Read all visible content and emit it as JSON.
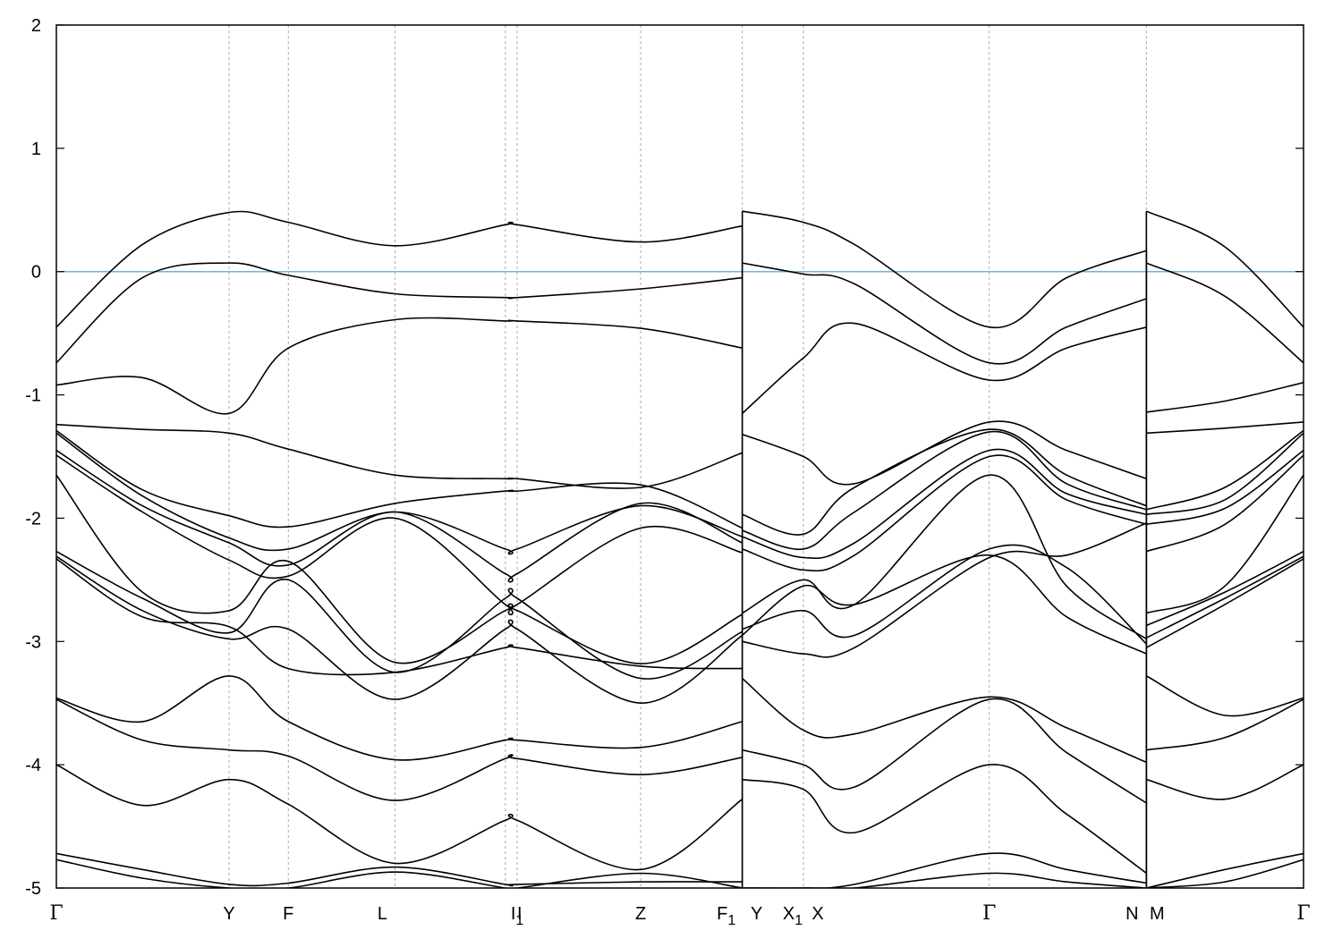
{
  "chart_data": {
    "type": "line",
    "ylim": [
      -5,
      2
    ],
    "yticks": [
      -5,
      -4,
      -3,
      -2,
      -1,
      0,
      1,
      2
    ],
    "grid": "vertical dashed lines at high-symmetry points",
    "fermi_level": 0,
    "colors": {
      "bands": "#000000",
      "fermi_line": "#6fb7d0",
      "grid": "#aaaaaa"
    },
    "kpoints": [
      {
        "label": "Γ",
        "x": 0.0
      },
      {
        "label": "Y",
        "x": 1.385
      },
      {
        "label": "F",
        "x": 1.86
      },
      {
        "label": "L",
        "x": 2.715
      },
      {
        "label": "I",
        "x": 3.6
      },
      {
        "label": "I",
        "sub": "1",
        "x": 3.695
      },
      {
        "label": "Z",
        "x": 4.685
      },
      {
        "label": "F",
        "sub": "1",
        "x": 5.5
      },
      {
        "label": "Y",
        "x": 5.5
      },
      {
        "label": "X",
        "sub": "1",
        "x": 5.99
      },
      {
        "label": "X",
        "x": 5.99
      },
      {
        "label": "Γ",
        "x": 7.48
      },
      {
        "label": "N",
        "x": 8.74
      },
      {
        "label": "M",
        "x": 8.74
      },
      {
        "label": "Γ",
        "x": 10.0
      }
    ],
    "xlim": [
      0,
      10
    ],
    "segments": [
      {
        "name": "Γ-Y-F-L-I-I1-Z-F1",
        "x": [
          0,
          0.69,
          1.385,
          1.86,
          2.715,
          3.6,
          3.695,
          4.685,
          5.5
        ],
        "bands": [
          [
            -0.45,
            0.22,
            0.48,
            0.4,
            0.21,
            0.38,
            0.38,
            0.24,
            0.37
          ],
          [
            -0.74,
            -0.05,
            0.07,
            -0.03,
            -0.18,
            -0.21,
            -0.21,
            -0.14,
            -0.05
          ],
          [
            -0.92,
            -0.86,
            -1.15,
            -0.62,
            -0.39,
            -0.4,
            -0.4,
            -0.46,
            -0.62
          ],
          [
            -1.24,
            -1.28,
            -1.31,
            -1.44,
            -1.65,
            -1.68,
            -1.68,
            -1.75,
            -1.47
          ],
          [
            -1.29,
            -1.77,
            -1.98,
            -2.07,
            -1.88,
            -1.78,
            -1.78,
            -1.73,
            -2.08
          ],
          [
            -1.31,
            -1.82,
            -2.16,
            -2.25,
            -1.95,
            -2.25,
            -2.25,
            -1.9,
            -2.15
          ],
          [
            -1.45,
            -1.9,
            -2.2,
            -2.38,
            -1.95,
            -2.45,
            -2.45,
            -1.88,
            -2.2
          ],
          [
            -1.49,
            -1.95,
            -2.34,
            -2.47,
            -2.0,
            -2.7,
            -2.7,
            -2.08,
            -2.28
          ],
          [
            -1.65,
            -2.6,
            -2.75,
            -2.35,
            -3.17,
            -2.75,
            -2.75,
            -3.18,
            -2.78
          ],
          [
            -2.27,
            -2.65,
            -2.93,
            -2.5,
            -3.25,
            -2.65,
            -2.65,
            -3.3,
            -2.92
          ],
          [
            -2.31,
            -2.75,
            -2.98,
            -2.9,
            -3.47,
            -2.9,
            -2.9,
            -3.5,
            -2.95
          ],
          [
            -2.33,
            -2.8,
            -2.88,
            -3.22,
            -3.25,
            -3.05,
            -3.05,
            -3.2,
            -3.22
          ],
          [
            -3.46,
            -3.65,
            -3.28,
            -3.65,
            -3.96,
            -3.8,
            -3.8,
            -3.86,
            -3.65
          ],
          [
            -3.47,
            -3.8,
            -3.88,
            -3.93,
            -4.29,
            -3.95,
            -3.95,
            -4.08,
            -3.94
          ],
          [
            -4.0,
            -4.33,
            -4.12,
            -4.32,
            -4.8,
            -4.45,
            -4.45,
            -4.85,
            -4.28
          ],
          [
            -4.72,
            -4.85,
            -4.97,
            -4.96,
            -4.83,
            -4.97,
            -4.97,
            -4.95,
            -4.95
          ],
          [
            -4.77,
            -4.92,
            -5.0,
            -5.0,
            -4.87,
            -5.0,
            -5.0,
            -4.88,
            -5.0
          ]
        ]
      },
      {
        "name": "Y-X1-X-Γ-N",
        "x": [
          5.5,
          5.99,
          6.4,
          7.48,
          8.1,
          8.74
        ],
        "bands": [
          [
            0.49,
            0.4,
            0.22,
            -0.45,
            -0.05,
            0.17
          ],
          [
            0.07,
            -0.02,
            -0.1,
            -0.74,
            -0.45,
            -0.22
          ],
          [
            -1.15,
            -0.7,
            -0.42,
            -0.88,
            -0.62,
            -0.45
          ],
          [
            -1.32,
            -1.5,
            -1.72,
            -1.22,
            -1.45,
            -1.68
          ],
          [
            -1.97,
            -2.13,
            -1.75,
            -1.28,
            -1.65,
            -1.9
          ],
          [
            -2.1,
            -2.25,
            -1.95,
            -1.3,
            -1.72,
            -1.93
          ],
          [
            -2.15,
            -2.32,
            -2.2,
            -1.45,
            -1.8,
            -1.97
          ],
          [
            -2.25,
            -2.42,
            -2.3,
            -1.5,
            -1.85,
            -2.05
          ],
          [
            -2.77,
            -2.5,
            -2.7,
            -1.65,
            -2.55,
            -2.98
          ],
          [
            -2.9,
            -2.75,
            -2.95,
            -2.25,
            -2.4,
            -3.02
          ],
          [
            -2.95,
            -2.55,
            -2.7,
            -2.3,
            -2.8,
            -3.1
          ],
          [
            -3.0,
            -3.1,
            -3.05,
            -2.32,
            -2.3,
            -2.04
          ],
          [
            -3.3,
            -3.72,
            -3.75,
            -3.45,
            -3.7,
            -3.98
          ],
          [
            -3.88,
            -4.0,
            -4.18,
            -3.47,
            -3.9,
            -4.31
          ],
          [
            -4.12,
            -4.2,
            -4.55,
            -4.0,
            -4.4,
            -4.88
          ],
          [
            -5.0,
            -5.0,
            -4.97,
            -4.72,
            -4.85,
            -4.96
          ],
          [
            -5.0,
            -5.0,
            -5.0,
            -4.88,
            -4.95,
            -5.0
          ]
        ]
      },
      {
        "name": "M-Γ",
        "x": [
          8.74,
          9.37,
          10.0
        ],
        "bands": [
          [
            0.49,
            0.2,
            -0.45
          ],
          [
            0.07,
            -0.2,
            -0.74
          ],
          [
            -1.14,
            -1.05,
            -0.9
          ],
          [
            -1.31,
            -1.27,
            -1.22
          ],
          [
            -1.93,
            -1.75,
            -1.29
          ],
          [
            -1.97,
            -1.85,
            -1.31
          ],
          [
            -2.05,
            -1.92,
            -1.45
          ],
          [
            -2.27,
            -2.05,
            -1.49
          ],
          [
            -2.77,
            -2.55,
            -1.65
          ],
          [
            -2.87,
            -2.6,
            -2.27
          ],
          [
            -2.97,
            -2.65,
            -2.31
          ],
          [
            -3.05,
            -2.7,
            -2.33
          ],
          [
            -3.28,
            -3.6,
            -3.46
          ],
          [
            -3.88,
            -3.78,
            -3.47
          ],
          [
            -4.12,
            -4.28,
            -4.0
          ],
          [
            -5.0,
            -4.85,
            -4.72
          ],
          [
            -5.0,
            -4.95,
            -4.77
          ]
        ]
      }
    ]
  }
}
